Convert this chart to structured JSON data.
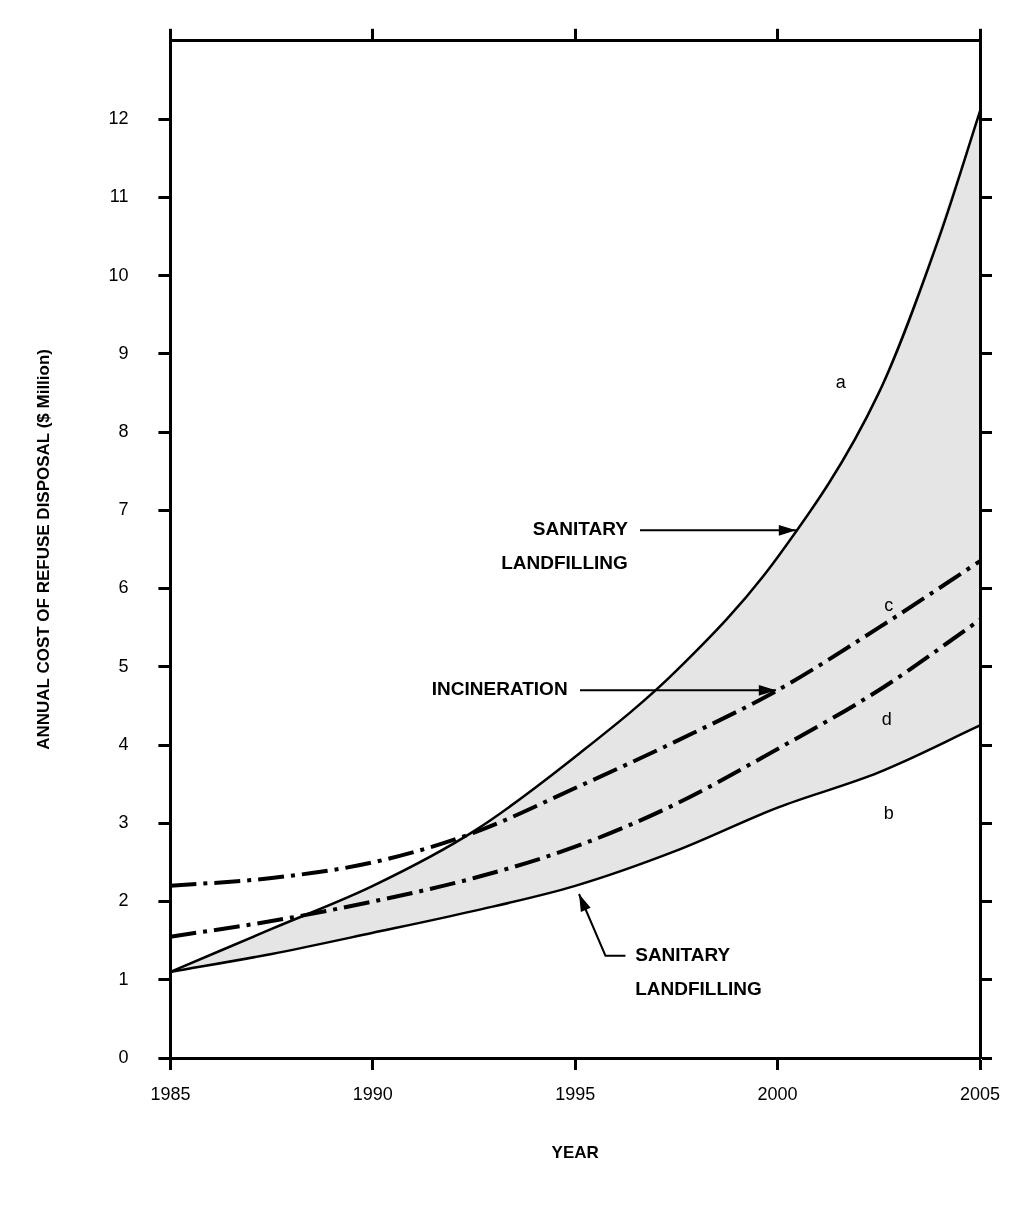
{
  "chart_data": {
    "type": "line",
    "xlabel": "YEAR",
    "ylabel": "ANNUAL COST OF REFUSE DISPOSAL ($ Million)",
    "x": [
      1985,
      1987.5,
      1990,
      1992.5,
      1995,
      1997.5,
      2000,
      2002.5,
      2004,
      2005
    ],
    "series": [
      {
        "name": "a",
        "color": "#000000",
        "line_style": "solid",
        "values": [
          1.1,
          1.65,
          2.2,
          2.9,
          3.85,
          4.95,
          6.4,
          8.5,
          10.5,
          12.1
        ]
      },
      {
        "name": "b",
        "color": "#000000",
        "line_style": "solid",
        "x": [
          1985,
          1987.5,
          1990,
          1992.5,
          1995,
          1997.5,
          2000,
          2002.5,
          2005
        ],
        "values": [
          1.1,
          1.33,
          1.6,
          1.88,
          2.2,
          2.65,
          3.2,
          3.65,
          4.25
        ],
        "lower": [
          1.1,
          1.33,
          1.6,
          1.88,
          2.2,
          2.65,
          3.2,
          3.65,
          4.25
        ],
        "upper": [
          1.1,
          1.65,
          2.2,
          2.9,
          3.85,
          4.95,
          6.4,
          8.5,
          12.1
        ]
      },
      {
        "name": "c",
        "color": "#000000",
        "line_style": "dashed",
        "x": [
          1985,
          1987.5,
          1990,
          1992.5,
          1995,
          1997.5,
          2000,
          2002.5,
          2005
        ],
        "values": [
          2.2,
          2.3,
          2.5,
          2.88,
          3.45,
          4.05,
          4.7,
          5.5,
          6.35
        ]
      },
      {
        "name": "d",
        "color": "#000000",
        "line_style": "dashed",
        "x": [
          1985,
          1987.5,
          1990,
          1992.5,
          1995,
          1997.5,
          2000,
          2002.5,
          2005
        ],
        "values": [
          1.55,
          1.75,
          2.0,
          2.3,
          2.7,
          3.25,
          3.95,
          4.7,
          5.6
        ]
      }
    ],
    "xlim": [
      1985,
      2005
    ],
    "xticks": [
      1985,
      1990,
      1995,
      2000,
      2005
    ],
    "ylim": [
      0,
      13
    ],
    "yticks": [
      0,
      1,
      2,
      3,
      4,
      5,
      6,
      7,
      8,
      9,
      10,
      11,
      12
    ],
    "grid": false,
    "legend": false,
    "marker": "none",
    "annotations": [
      {
        "text": "SANITARY\nLANDFILLING",
        "x": 2000.5,
        "y": 6.75
      },
      {
        "text": "INCINERATION",
        "x": 2000,
        "y": 4.7
      },
      {
        "text": "SANITARY\nLANDFILLING",
        "x": 1995,
        "y": 2.2
      }
    ]
  }
}
